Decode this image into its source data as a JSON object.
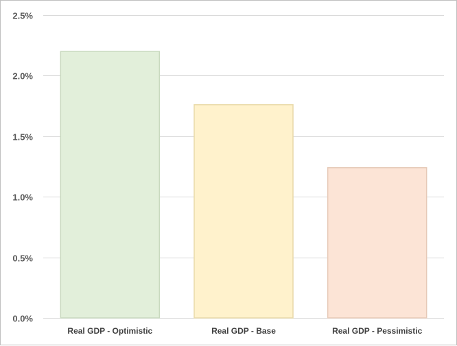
{
  "chart_data": {
    "type": "bar",
    "title": "",
    "xlabel": "",
    "ylabel": "",
    "categories": [
      "Real GDP - Optimistic",
      "Real GDP - Base",
      "Real GDP - Pessimistic"
    ],
    "values": [
      2.2,
      1.76,
      1.24
    ],
    "value_unit": "%",
    "ylim": [
      0,
      2.5
    ],
    "yticks": [
      0,
      0.5,
      1.0,
      1.5,
      2.0,
      2.5
    ],
    "ytick_labels": [
      "0.0%",
      "0.5%",
      "1.0%",
      "1.5%",
      "2.0%",
      "2.5%"
    ],
    "bar_colors": [
      "#e2efda",
      "#fff2cc",
      "#fce4d6"
    ],
    "bar_edge_colors": [
      "#c9d9bf",
      "#e8d9a8",
      "#e6c9b7"
    ],
    "grid": true,
    "grid_color": "#d9d9d9",
    "legend": "none"
  }
}
